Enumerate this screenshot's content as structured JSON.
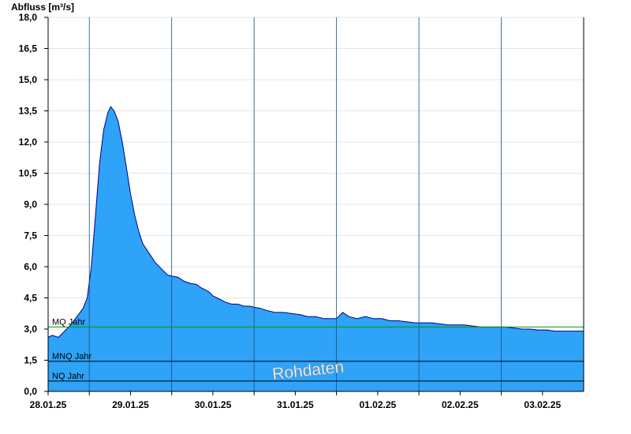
{
  "chart_data": {
    "type": "area",
    "ylabel": "Abfluss [m³/s]",
    "ylim": [
      0,
      18
    ],
    "y_ticks": [
      "0,0",
      "1,5",
      "3,0",
      "4,5",
      "6,0",
      "7,5",
      "9,0",
      "10,5",
      "12,0",
      "13,5",
      "15,0",
      "16,5",
      "18,0"
    ],
    "x_tick_labels": [
      "28.01.25",
      "29.01.25",
      "30.01.25",
      "31.01.25",
      "01.02.25",
      "02.02.25",
      "03.02.25"
    ],
    "grid": true,
    "colors": {
      "fill": "#2ea3f8",
      "line": "#00008b",
      "mq_line": "#009900",
      "ref_line": "#000000"
    },
    "reference_lines": [
      {
        "name": "MQ Jahr",
        "value": 3.1
      },
      {
        "name": "MNQ Jahr",
        "value": 1.45
      },
      {
        "name": "NQ Jahr",
        "value": 0.5
      }
    ],
    "series": [
      {
        "points": [
          [
            0.0,
            2.6
          ],
          [
            0.1,
            2.7
          ],
          [
            0.25,
            2.6
          ],
          [
            0.4,
            2.9
          ],
          [
            0.55,
            3.2
          ],
          [
            0.7,
            3.6
          ],
          [
            0.85,
            4.0
          ],
          [
            0.95,
            4.5
          ],
          [
            1.05,
            6.0
          ],
          [
            1.15,
            8.5
          ],
          [
            1.25,
            11.0
          ],
          [
            1.35,
            12.6
          ],
          [
            1.45,
            13.4
          ],
          [
            1.52,
            13.7
          ],
          [
            1.6,
            13.5
          ],
          [
            1.7,
            13.0
          ],
          [
            1.8,
            12.0
          ],
          [
            1.9,
            10.8
          ],
          [
            2.0,
            9.5
          ],
          [
            2.1,
            8.5
          ],
          [
            2.2,
            7.7
          ],
          [
            2.3,
            7.1
          ],
          [
            2.4,
            6.8
          ],
          [
            2.5,
            6.5
          ],
          [
            2.6,
            6.2
          ],
          [
            2.7,
            6.0
          ],
          [
            2.8,
            5.8
          ],
          [
            2.9,
            5.6
          ],
          [
            3.0,
            5.55
          ],
          [
            3.15,
            5.5
          ],
          [
            3.3,
            5.3
          ],
          [
            3.45,
            5.2
          ],
          [
            3.6,
            5.15
          ],
          [
            3.7,
            5.0
          ],
          [
            3.8,
            4.9
          ],
          [
            3.9,
            4.8
          ],
          [
            4.0,
            4.6
          ],
          [
            4.1,
            4.5
          ],
          [
            4.2,
            4.4
          ],
          [
            4.3,
            4.3
          ],
          [
            4.45,
            4.2
          ],
          [
            4.6,
            4.2
          ],
          [
            4.75,
            4.1
          ],
          [
            4.9,
            4.1
          ],
          [
            5.0,
            4.05
          ],
          [
            5.15,
            4.0
          ],
          [
            5.3,
            3.9
          ],
          [
            5.5,
            3.8
          ],
          [
            5.7,
            3.8
          ],
          [
            5.9,
            3.75
          ],
          [
            6.1,
            3.7
          ],
          [
            6.3,
            3.6
          ],
          [
            6.5,
            3.6
          ],
          [
            6.7,
            3.5
          ],
          [
            6.9,
            3.5
          ],
          [
            7.0,
            3.5
          ],
          [
            7.15,
            3.8
          ],
          [
            7.3,
            3.6
          ],
          [
            7.5,
            3.5
          ],
          [
            7.7,
            3.6
          ],
          [
            7.9,
            3.5
          ],
          [
            8.1,
            3.5
          ],
          [
            8.3,
            3.4
          ],
          [
            8.5,
            3.4
          ],
          [
            8.7,
            3.35
          ],
          [
            8.9,
            3.3
          ],
          [
            9.1,
            3.3
          ],
          [
            9.3,
            3.3
          ],
          [
            9.5,
            3.25
          ],
          [
            9.7,
            3.2
          ],
          [
            9.9,
            3.2
          ],
          [
            10.1,
            3.2
          ],
          [
            10.3,
            3.15
          ],
          [
            10.5,
            3.1
          ],
          [
            10.7,
            3.1
          ],
          [
            10.9,
            3.1
          ],
          [
            11.1,
            3.1
          ],
          [
            11.3,
            3.05
          ],
          [
            11.5,
            3.0
          ],
          [
            11.7,
            3.0
          ],
          [
            11.9,
            2.95
          ],
          [
            12.1,
            2.95
          ],
          [
            12.3,
            2.9
          ],
          [
            12.5,
            2.9
          ],
          [
            12.7,
            2.9
          ],
          [
            13.0,
            2.9
          ]
        ],
        "x_unit": "half-days from 27.01.25 12:00"
      }
    ]
  },
  "watermark": "Rohdaten"
}
